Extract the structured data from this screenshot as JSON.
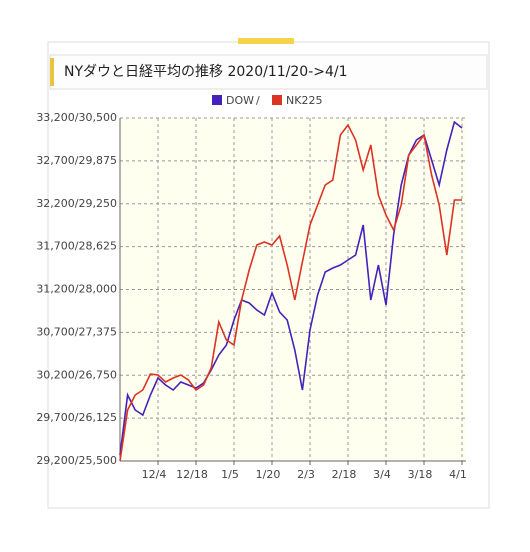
{
  "chart_data": {
    "type": "line",
    "title": "NYダウと日経平均の推移 2020/11/20->4/1",
    "legend_separator": "/",
    "categories": [
      null,
      null,
      null,
      null,
      null,
      "12/4",
      null,
      null,
      null,
      null,
      "12/18",
      null,
      null,
      null,
      null,
      "1/5",
      null,
      null,
      null,
      null,
      "1/20",
      null,
      null,
      null,
      null,
      "2/3",
      null,
      null,
      null,
      null,
      "2/18",
      null,
      null,
      null,
      null,
      "3/4",
      null,
      null,
      null,
      null,
      "3/18",
      null,
      null,
      null,
      null,
      "4/1"
    ],
    "series": [
      {
        "name": "DOW",
        "color": "#4422bb",
        "values": [
          29270,
          29970,
          29795,
          29737,
          29970,
          30168,
          30086,
          30028,
          30121,
          30086,
          30051,
          30110,
          30261,
          30436,
          30553,
          30844,
          31078,
          31043,
          30961,
          30903,
          31159,
          30938,
          30844,
          30494,
          30028,
          30728,
          31136,
          31404,
          31451,
          31486,
          31544,
          31602,
          31952,
          31078,
          31486,
          31019,
          31836,
          32419,
          32769,
          32943,
          33002,
          32710,
          32419,
          32827,
          33153,
          33083
        ]
      },
      {
        "name": "NK225",
        "color": "#dd3322",
        "axis": "y2",
        "values": [
          25500,
          26244,
          26462,
          26535,
          26768,
          26754,
          26652,
          26710,
          26754,
          26681,
          26535,
          26608,
          26856,
          27526,
          27264,
          27191,
          27847,
          28284,
          28649,
          28692,
          28649,
          28780,
          28357,
          27847,
          28401,
          28940,
          29232,
          29523,
          29596,
          30252,
          30398,
          30179,
          29742,
          30106,
          29378,
          29086,
          28867,
          29232,
          29961,
          30106,
          30252,
          29669,
          29232,
          28503,
          29305,
          29305
        ]
      }
    ],
    "ylim": [
      29200,
      33200
    ],
    "y2lim": [
      25500,
      30500
    ],
    "yticks": [
      {
        "value": 29200,
        "label": "29,200/25,500"
      },
      {
        "value": 29700,
        "label": "29,700/26,125"
      },
      {
        "value": 30200,
        "label": "30,200/26,750"
      },
      {
        "value": 30700,
        "label": "30,700/27,375"
      },
      {
        "value": 31200,
        "label": "31,200/28,000"
      },
      {
        "value": 31700,
        "label": "31,700/28,625"
      },
      {
        "value": 32200,
        "label": "32,200/29,250"
      },
      {
        "value": 32700,
        "label": "32,700/29,875"
      },
      {
        "value": 33200,
        "label": "33,200/30,500"
      }
    ],
    "grid": true
  }
}
